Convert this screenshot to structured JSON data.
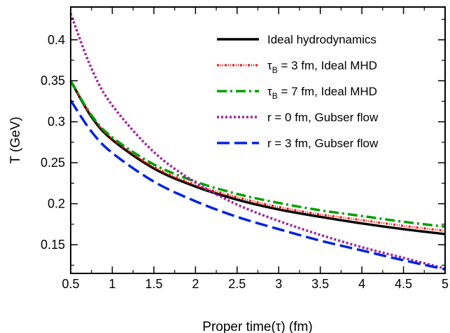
{
  "chart_data": {
    "type": "line",
    "title": "",
    "xlabel": "Proper time(τ) (fm)",
    "ylabel": "T (GeV)",
    "xlim": [
      0.5,
      5
    ],
    "ylim": [
      0.115,
      0.44
    ],
    "xticks": [
      0.5,
      1,
      1.5,
      2,
      2.5,
      3,
      3.5,
      4,
      4.5,
      5
    ],
    "xtick_labels": [
      "0.5",
      "1",
      "1.5",
      "2",
      "2.5",
      "3",
      "3.5",
      "4",
      "4.5",
      "5"
    ],
    "yticks": [
      0.15,
      0.2,
      0.25,
      0.3,
      0.35,
      0.4
    ],
    "ytick_labels": [
      "0.15",
      "0.2",
      "0.25",
      "0.3",
      "0.35",
      "0.4"
    ],
    "grid": false,
    "legend_position": "top-right",
    "x": [
      0.5,
      0.75,
      1.0,
      1.5,
      2.0,
      2.5,
      3.0,
      3.5,
      4.0,
      4.5,
      5.0
    ],
    "series": [
      {
        "name": "Ideal hydrodynamics",
        "label_main": "Ideal hydrodynamics",
        "label_sub": "",
        "label_rest": "",
        "color": "#000000",
        "dash": "",
        "width": 3.5,
        "values": [
          0.35,
          0.306,
          0.278,
          0.243,
          0.221,
          0.205,
          0.193,
          0.184,
          0.176,
          0.169,
          0.163
        ]
      },
      {
        "name": "τB = 3 fm, Ideal MHD",
        "label_main": "τ",
        "label_sub": "B",
        "label_rest": " = 3 fm, Ideal MHD",
        "color": "#ff0000",
        "dash": "3 2 1 2 1 2",
        "width": 3,
        "values": [
          0.35,
          0.307,
          0.279,
          0.245,
          0.223,
          0.208,
          0.196,
          0.187,
          0.18,
          0.173,
          0.167
        ]
      },
      {
        "name": "τB = 7 fm, Ideal MHD",
        "label_main": "τ",
        "label_sub": "B",
        "label_rest": " = 7 fm, Ideal MHD",
        "color": "#00a000",
        "dash": "14 5 3 5",
        "width": 3.5,
        "values": [
          0.35,
          0.308,
          0.281,
          0.248,
          0.227,
          0.212,
          0.201,
          0.192,
          0.185,
          0.178,
          0.172
        ]
      },
      {
        "name": "r = 0 fm, Gubser flow",
        "label_main": "r = 0 fm, Gubser flow",
        "label_sub": "",
        "label_rest": "",
        "color": "#a020a0",
        "dash": "3 3",
        "width": 3.5,
        "values": [
          0.432,
          0.365,
          0.32,
          0.263,
          0.226,
          0.199,
          0.179,
          0.162,
          0.147,
          0.134,
          0.121
        ]
      },
      {
        "name": "r = 3 fm, Gubser flow",
        "label_main": "r = 3 fm, Gubser flow",
        "label_sub": "",
        "label_rest": "",
        "color": "#0022dd",
        "dash": "18 7",
        "width": 3.5,
        "values": [
          0.326,
          0.288,
          0.262,
          0.227,
          0.203,
          0.184,
          0.169,
          0.155,
          0.143,
          0.131,
          0.12
        ]
      }
    ]
  }
}
